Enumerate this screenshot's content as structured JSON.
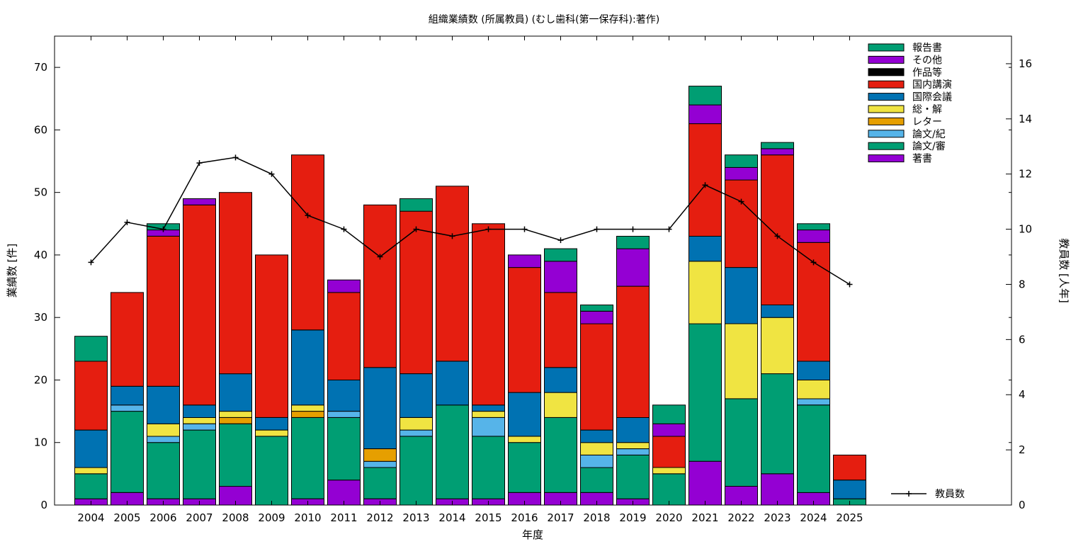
{
  "chart_data": {
    "type": "bar",
    "title": "組織業績数 (所属教員) (むし歯科(第一保存科):著作)",
    "xlabel": "年度",
    "ylabel": "業績数 [件]",
    "y2label": "教員数 [人年]",
    "ylim": [
      0,
      75
    ],
    "y2lim": [
      0,
      17
    ],
    "yticks": [
      "0",
      "10",
      "20",
      "30",
      "40",
      "50",
      "60",
      "70"
    ],
    "y2ticks": [
      "0",
      "2",
      "4",
      "6",
      "8",
      "10",
      "12",
      "14",
      "16"
    ],
    "grid": false,
    "legend_position": "top-right",
    "categories": [
      "2004",
      "2005",
      "2006",
      "2007",
      "2008",
      "2009",
      "2010",
      "2011",
      "2012",
      "2013",
      "2014",
      "2015",
      "2016",
      "2017",
      "2018",
      "2019",
      "2020",
      "2021",
      "2022",
      "2023",
      "2024",
      "2025"
    ],
    "series": [
      {
        "name": "著書",
        "color": "#9400d3",
        "values": [
          1,
          2,
          1,
          1,
          3,
          0,
          1,
          4,
          1,
          0,
          1,
          1,
          2,
          2,
          2,
          1,
          0,
          7,
          3,
          5,
          2,
          0
        ]
      },
      {
        "name": "論文/審",
        "color": "#009e73",
        "values": [
          4,
          13,
          9,
          11,
          10,
          11,
          13,
          10,
          5,
          11,
          15,
          10,
          8,
          12,
          4,
          7,
          5,
          22,
          14,
          16,
          14,
          1
        ]
      },
      {
        "name": "論文/紀",
        "color": "#56b4e9",
        "values": [
          0,
          1,
          1,
          1,
          0,
          0,
          0,
          1,
          1,
          1,
          0,
          3,
          0,
          0,
          2,
          1,
          0,
          0,
          0,
          0,
          1,
          0
        ]
      },
      {
        "name": "レター",
        "color": "#e69f00",
        "values": [
          0,
          0,
          0,
          0,
          1,
          0,
          1,
          0,
          2,
          0,
          0,
          0,
          0,
          0,
          0,
          0,
          0,
          0,
          0,
          0,
          0,
          0
        ]
      },
      {
        "name": "総・解",
        "color": "#f0e442",
        "values": [
          1,
          0,
          2,
          1,
          1,
          1,
          1,
          0,
          0,
          2,
          0,
          1,
          1,
          4,
          2,
          1,
          1,
          10,
          12,
          9,
          3,
          0
        ]
      },
      {
        "name": "国際会議",
        "color": "#0072b2",
        "values": [
          6,
          3,
          6,
          2,
          6,
          2,
          12,
          5,
          13,
          7,
          7,
          1,
          7,
          4,
          2,
          4,
          0,
          4,
          9,
          2,
          3,
          3
        ]
      },
      {
        "name": "国内講演",
        "color": "#e51e10",
        "values": [
          11,
          15,
          24,
          32,
          29,
          26,
          28,
          14,
          26,
          26,
          28,
          29,
          20,
          12,
          17,
          21,
          5,
          18,
          14,
          24,
          19,
          4
        ]
      },
      {
        "name": "作品等",
        "color": "#000000",
        "values": [
          0,
          0,
          0,
          0,
          0,
          0,
          0,
          0,
          0,
          0,
          0,
          0,
          0,
          0,
          0,
          0,
          0,
          0,
          0,
          0,
          0,
          0
        ]
      },
      {
        "name": "その他",
        "color": "#9400d3",
        "values": [
          0,
          0,
          1,
          1,
          0,
          0,
          0,
          2,
          0,
          0,
          0,
          0,
          2,
          5,
          2,
          6,
          2,
          3,
          2,
          1,
          2,
          0
        ]
      },
      {
        "name": "報告書",
        "color": "#009e73",
        "values": [
          4,
          0,
          1,
          0,
          0,
          0,
          0,
          0,
          0,
          2,
          0,
          0,
          0,
          2,
          1,
          2,
          3,
          3,
          2,
          1,
          1,
          0
        ]
      }
    ],
    "line": {
      "name": "教員数",
      "color": "#000000",
      "values": [
        8.8,
        10.25,
        10.0,
        12.4,
        12.6,
        12.0,
        10.5,
        10.0,
        9.0,
        10.0,
        9.75,
        10.0,
        10.0,
        9.6,
        10.0,
        10.0,
        10.0,
        11.6,
        11.0,
        9.75,
        8.8,
        8.0
      ]
    }
  }
}
